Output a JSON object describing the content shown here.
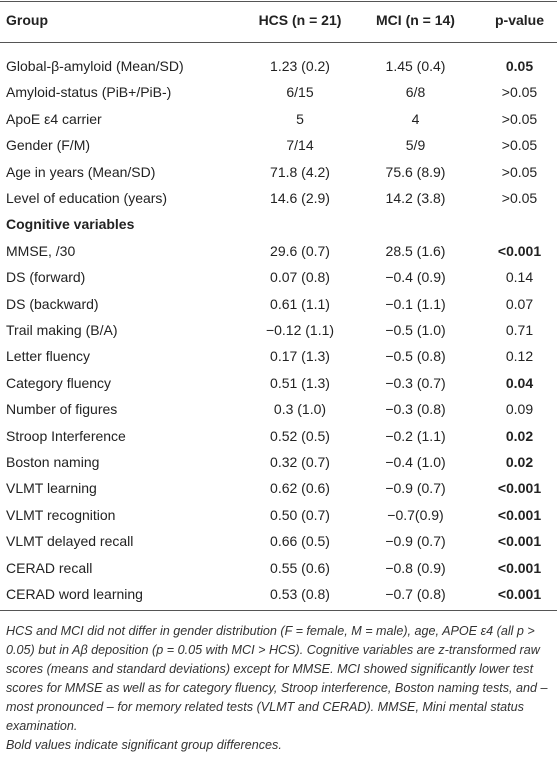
{
  "table": {
    "columns": [
      "Group",
      "HCS (n = 21)",
      "MCI (n = 14)",
      "p-value"
    ],
    "rows": [
      {
        "cells": [
          "Global-β-amyloid (Mean/SD)",
          "1.23 (0.2)",
          "1.45 (0.4)",
          "0.05"
        ],
        "bold_p": true
      },
      {
        "cells": [
          "Amyloid-status (PiB+/PiB-)",
          "6/15",
          "6/8",
          ">0.05"
        ],
        "bold_p": false
      },
      {
        "cells": [
          "ApoE ε4 carrier",
          "5",
          "4",
          ">0.05"
        ],
        "bold_p": false
      },
      {
        "cells": [
          "Gender (F/M)",
          "7/14",
          "5/9",
          ">0.05"
        ],
        "bold_p": false
      },
      {
        "cells": [
          "Age in years (Mean/SD)",
          "71.8 (4.2)",
          "75.6 (8.9)",
          ">0.05"
        ],
        "bold_p": false
      },
      {
        "cells": [
          "Level of education (years)",
          "14.6 (2.9)",
          "14.2 (3.8)",
          ">0.05"
        ],
        "bold_p": false
      },
      {
        "section": "Cognitive variables"
      },
      {
        "cells": [
          "MMSE, /30",
          "29.6 (0.7)",
          "28.5 (1.6)",
          "<0.001"
        ],
        "bold_p": true
      },
      {
        "cells": [
          "DS (forward)",
          "0.07 (0.8)",
          "−0.4 (0.9)",
          "0.14"
        ],
        "bold_p": false
      },
      {
        "cells": [
          "DS (backward)",
          "0.61 (1.1)",
          "−0.1 (1.1)",
          "0.07"
        ],
        "bold_p": false
      },
      {
        "cells": [
          "Trail making (B/A)",
          "−0.12 (1.1)",
          "−0.5 (1.0)",
          "0.71"
        ],
        "bold_p": false
      },
      {
        "cells": [
          "Letter fluency",
          "0.17 (1.3)",
          "−0.5 (0.8)",
          "0.12"
        ],
        "bold_p": false
      },
      {
        "cells": [
          "Category fluency",
          "0.51 (1.3)",
          "−0.3 (0.7)",
          "0.04"
        ],
        "bold_p": true
      },
      {
        "cells": [
          "Number of figures",
          "0.3 (1.0)",
          "−0.3 (0.8)",
          "0.09"
        ],
        "bold_p": false
      },
      {
        "cells": [
          "Stroop Interference",
          "0.52 (0.5)",
          "−0.2 (1.1)",
          "0.02"
        ],
        "bold_p": true
      },
      {
        "cells": [
          "Boston naming",
          "0.32 (0.7)",
          "−0.4 (1.0)",
          "0.02"
        ],
        "bold_p": true
      },
      {
        "cells": [
          "VLMT learning",
          "0.62 (0.6)",
          "−0.9 (0.7)",
          "<0.001"
        ],
        "bold_p": true
      },
      {
        "cells": [
          "VLMT recognition",
          "0.50 (0.7)",
          "−0.7(0.9)",
          "<0.001"
        ],
        "bold_p": true
      },
      {
        "cells": [
          "VLMT delayed recall",
          "0.66 (0.5)",
          "−0.9 (0.7)",
          "<0.001"
        ],
        "bold_p": true
      },
      {
        "cells": [
          "CERAD recall",
          "0.55 (0.6)",
          "−0.8 (0.9)",
          "<0.001"
        ],
        "bold_p": true
      },
      {
        "cells": [
          "CERAD word learning",
          "0.53 (0.8)",
          "−0.7 (0.8)",
          "<0.001"
        ],
        "bold_p": true
      }
    ]
  },
  "footnote": [
    "HCS and MCI did not differ in gender distribution (F = female, M = male), age, APOE ε4 (all p > 0.05) but in Aβ deposition (p = 0.05 with MCI > HCS). Cognitive variables are z-transformed raw scores (means and standard deviations) except for MMSE. MCI showed significantly lower test scores for MMSE as well as for category fluency, Stroop interference, Boston naming tests, and – most pronounced – for memory related tests (VLMT and CERAD). MMSE, Mini mental status examination.",
    "Bold values indicate significant group differences."
  ]
}
